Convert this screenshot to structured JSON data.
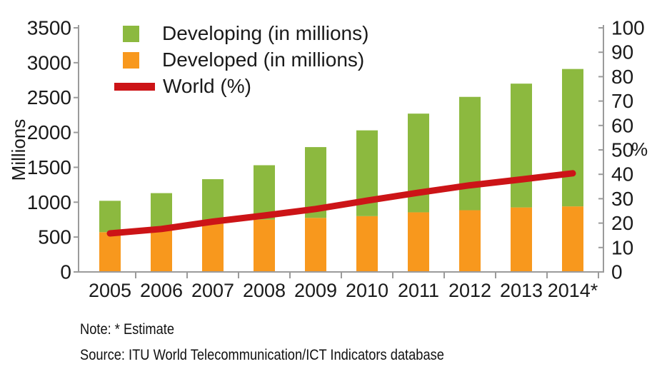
{
  "legend": {
    "items": [
      {
        "label": "Developing (in millions)",
        "color": "#8CB93F",
        "swatch": "square"
      },
      {
        "label": "Developed (in millions)",
        "color": "#F8981D",
        "swatch": "square"
      },
      {
        "label": "World (%)",
        "color": "#CC1417",
        "swatch": "line"
      }
    ]
  },
  "left_axis": {
    "title": "Millions",
    "min": 0,
    "max": 3500,
    "step": 500,
    "tick_labels": [
      "3500",
      "3000",
      "2500",
      "2000",
      "1500",
      "1000",
      "500",
      "0"
    ]
  },
  "right_axis": {
    "title": "%",
    "min": 0,
    "max": 100,
    "step": 10,
    "tick_labels": [
      "100",
      "90",
      "80",
      "70",
      "60",
      "50",
      "40",
      "30",
      "20",
      "10",
      "0"
    ]
  },
  "notes": {
    "note": "Note: * Estimate",
    "source": "Source: ITU World Telecommunication/ICT Indicators database"
  },
  "chart_data": {
    "type": "bar",
    "subtype": "stacked-bars-with-right-axis-line-overlay",
    "title": "",
    "categories": [
      "2005",
      "2006",
      "2007",
      "2008",
      "2009",
      "2010",
      "2011",
      "2012",
      "2013",
      "2014*"
    ],
    "series": [
      {
        "name": "Developed (in millions)",
        "color": "#F8981D",
        "stack_order": "bottom",
        "values": [
          570,
          630,
          690,
          750,
          775,
          800,
          855,
          885,
          925,
          940
        ]
      },
      {
        "name": "Developing (in millions)",
        "color": "#8CB93F",
        "stack_order": "top",
        "values": [
          450,
          500,
          640,
          780,
          1015,
          1230,
          1415,
          1625,
          1775,
          1970
        ]
      }
    ],
    "stacked_totals": [
      1020,
      1130,
      1330,
      1530,
      1790,
      2030,
      2270,
      2510,
      2700,
      2910
    ],
    "line_series": {
      "name": "World (%)",
      "color": "#CC1417",
      "axis": "right",
      "values": [
        15.8,
        17.6,
        20.6,
        23.1,
        25.8,
        29.2,
        32.5,
        35.5,
        37.9,
        40.4
      ]
    },
    "left_ylim": [
      0,
      3500
    ],
    "right_ylim": [
      0,
      100
    ],
    "xlabel": "",
    "ylabel_left": "Millions",
    "ylabel_right": "%",
    "grid": false,
    "legend_position": "top-left",
    "axis_color": "#9b9b9b",
    "text_color": "#1a1a1a"
  }
}
